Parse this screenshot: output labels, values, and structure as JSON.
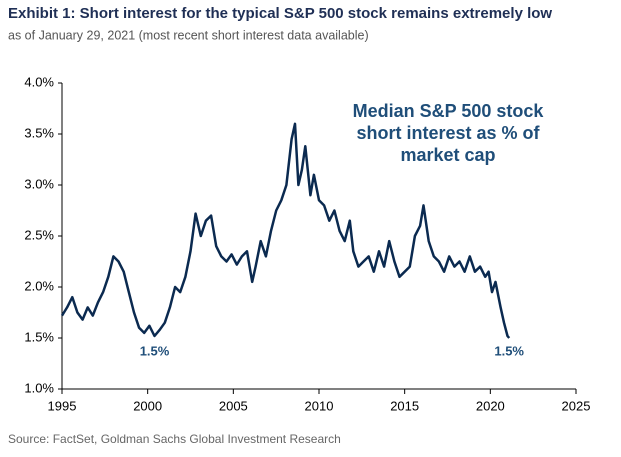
{
  "chart_data": {
    "type": "line",
    "title": "Exhibit 1: Short interest for the typical S&P 500 stock remains extremely low",
    "subtitle": "as of January 29, 2021 (most recent short interest data available)",
    "source": "Source: FactSet, Goldman Sachs Global Investment Research",
    "annotation_lines": [
      "Median S&P 500 stock",
      "short interest as % of",
      "market cap"
    ],
    "point_labels": [
      "1.5%",
      "1.5%"
    ],
    "x": [
      1995.0,
      1995.3,
      1995.6,
      1995.9,
      1996.2,
      1996.5,
      1996.8,
      1997.1,
      1997.4,
      1997.7,
      1998.0,
      1998.3,
      1998.6,
      1998.9,
      1999.2,
      1999.5,
      1999.8,
      2000.1,
      2000.4,
      2000.7,
      2001.0,
      2001.3,
      2001.6,
      2001.9,
      2002.2,
      2002.5,
      2002.8,
      2003.1,
      2003.4,
      2003.7,
      2004.0,
      2004.3,
      2004.6,
      2004.9,
      2005.2,
      2005.5,
      2005.8,
      2006.1,
      2006.3,
      2006.6,
      2006.9,
      2007.2,
      2007.5,
      2007.8,
      2008.1,
      2008.4,
      2008.6,
      2008.8,
      2009.0,
      2009.2,
      2009.5,
      2009.7,
      2010.0,
      2010.3,
      2010.6,
      2010.9,
      2011.2,
      2011.5,
      2011.8,
      2012.0,
      2012.3,
      2012.6,
      2012.9,
      2013.2,
      2013.5,
      2013.8,
      2014.1,
      2014.4,
      2014.7,
      2015.0,
      2015.3,
      2015.6,
      2015.9,
      2016.1,
      2016.4,
      2016.7,
      2017.0,
      2017.3,
      2017.6,
      2017.9,
      2018.2,
      2018.5,
      2018.8,
      2019.1,
      2019.4,
      2019.7,
      2019.9,
      2020.1,
      2020.3,
      2020.6,
      2020.8,
      2021.0,
      2021.1
    ],
    "series": [
      {
        "name": "Median S&P 500 stock short interest as % of market cap",
        "color": "#0b2a50",
        "values": [
          1.72,
          1.8,
          1.9,
          1.75,
          1.68,
          1.8,
          1.72,
          1.85,
          1.95,
          2.1,
          2.3,
          2.25,
          2.15,
          1.95,
          1.75,
          1.6,
          1.55,
          1.62,
          1.52,
          1.58,
          1.65,
          1.8,
          2.0,
          1.95,
          2.1,
          2.35,
          2.72,
          2.5,
          2.65,
          2.7,
          2.4,
          2.3,
          2.25,
          2.32,
          2.22,
          2.3,
          2.35,
          2.05,
          2.2,
          2.45,
          2.3,
          2.55,
          2.75,
          2.85,
          3.0,
          3.45,
          3.6,
          3.0,
          3.15,
          3.38,
          2.9,
          3.1,
          2.85,
          2.8,
          2.65,
          2.75,
          2.55,
          2.45,
          2.65,
          2.35,
          2.2,
          2.25,
          2.3,
          2.15,
          2.35,
          2.2,
          2.45,
          2.25,
          2.1,
          2.15,
          2.2,
          2.5,
          2.6,
          2.8,
          2.45,
          2.3,
          2.25,
          2.15,
          2.3,
          2.2,
          2.25,
          2.15,
          2.3,
          2.15,
          2.2,
          2.1,
          2.15,
          1.95,
          2.05,
          1.8,
          1.65,
          1.52,
          1.5
        ]
      }
    ],
    "xlim": [
      1995,
      2025
    ],
    "xticks": [
      1995,
      2000,
      2005,
      2010,
      2015,
      2020,
      2025
    ],
    "ylim": [
      1.0,
      4.0
    ],
    "yticks": [
      {
        "value": 1.0,
        "label": "1.0%"
      },
      {
        "value": 1.5,
        "label": "1.5%"
      },
      {
        "value": 2.0,
        "label": "2.0%"
      },
      {
        "value": 2.5,
        "label": "2.5%"
      },
      {
        "value": 3.0,
        "label": "3.0%"
      },
      {
        "value": 3.5,
        "label": "3.5%"
      },
      {
        "value": 4.0,
        "label": "4.0%"
      }
    ]
  }
}
